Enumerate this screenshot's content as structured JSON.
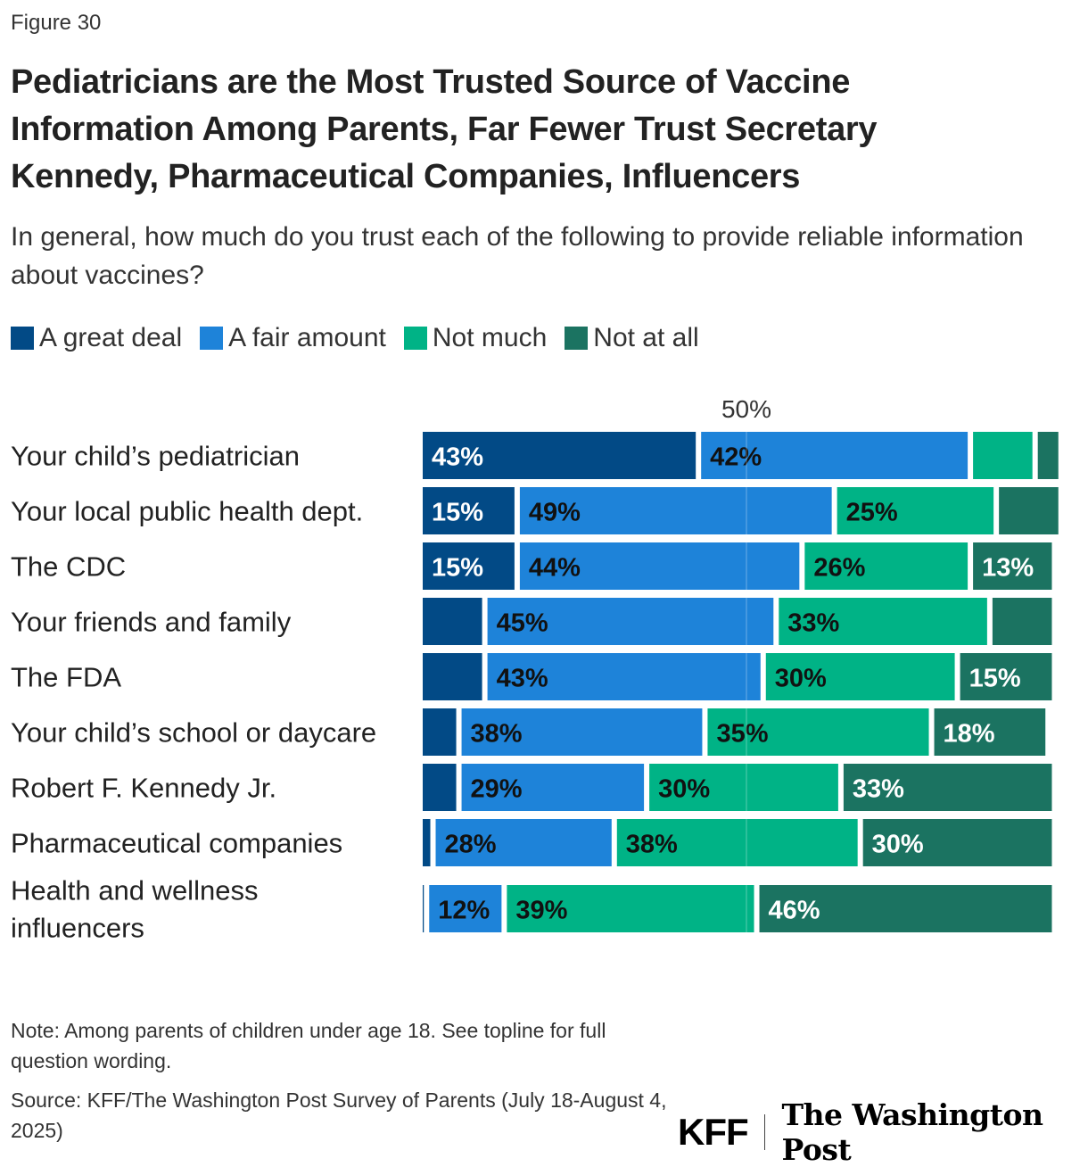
{
  "figure_label": "Figure 30",
  "chart_data": {
    "type": "bar",
    "orientation": "horizontal",
    "stacked": true,
    "title": "Pediatricians are the Most Trusted Source of Vaccine Information Among Parents, Far Fewer Trust Secretary Kennedy, Pharmaceutical Companies, Influencers",
    "subtitle": "In general, how much do you trust each of the following to provide reliable information about vaccines?",
    "categories": [
      "Your child’s pediatrician",
      "Your local public health dept.",
      "The CDC",
      "Your friends and family",
      "The FDA",
      "Your child’s school or daycare",
      "Robert F. Kennedy Jr.",
      "Pharmaceutical companies",
      "Health and wellness influencers"
    ],
    "series": [
      {
        "name": "A great deal",
        "color": "#024a86",
        "values": [
          43,
          15,
          15,
          10,
          10,
          6,
          6,
          2,
          1
        ]
      },
      {
        "name": "A fair amount",
        "color": "#1e83d9",
        "values": [
          42,
          49,
          44,
          45,
          43,
          38,
          29,
          28,
          12
        ]
      },
      {
        "name": "Not much",
        "color": "#00b386",
        "values": [
          10,
          25,
          26,
          33,
          30,
          35,
          30,
          38,
          39
        ]
      },
      {
        "name": "Not at all",
        "color": "#1b7361",
        "values": [
          4,
          10,
          13,
          10,
          15,
          18,
          33,
          30,
          46
        ]
      }
    ],
    "data_labels": [
      [
        "43%",
        "42%",
        "",
        ""
      ],
      [
        "15%",
        "49%",
        "25%",
        ""
      ],
      [
        "15%",
        "44%",
        "26%",
        "13%"
      ],
      [
        "",
        "45%",
        "33%",
        ""
      ],
      [
        "",
        "43%",
        "30%",
        "15%"
      ],
      [
        "",
        "38%",
        "35%",
        "18%"
      ],
      [
        "",
        "29%",
        "30%",
        "33%"
      ],
      [
        "",
        "28%",
        "38%",
        "30%"
      ],
      [
        "",
        "12%",
        "39%",
        "46%"
      ]
    ],
    "reference_line": {
      "value": 50,
      "label": "50%"
    },
    "xlim": [
      0,
      100
    ],
    "legend_position": "top-left",
    "grid": false
  },
  "note": "Note: Among parents of children under age 18. See topline for full question wording.",
  "source": "Source: KFF/The Washington Post Survey of Parents (July 18-August 4, 2025)",
  "logos": {
    "kff": "KFF",
    "wapo": "The Washington Post"
  }
}
